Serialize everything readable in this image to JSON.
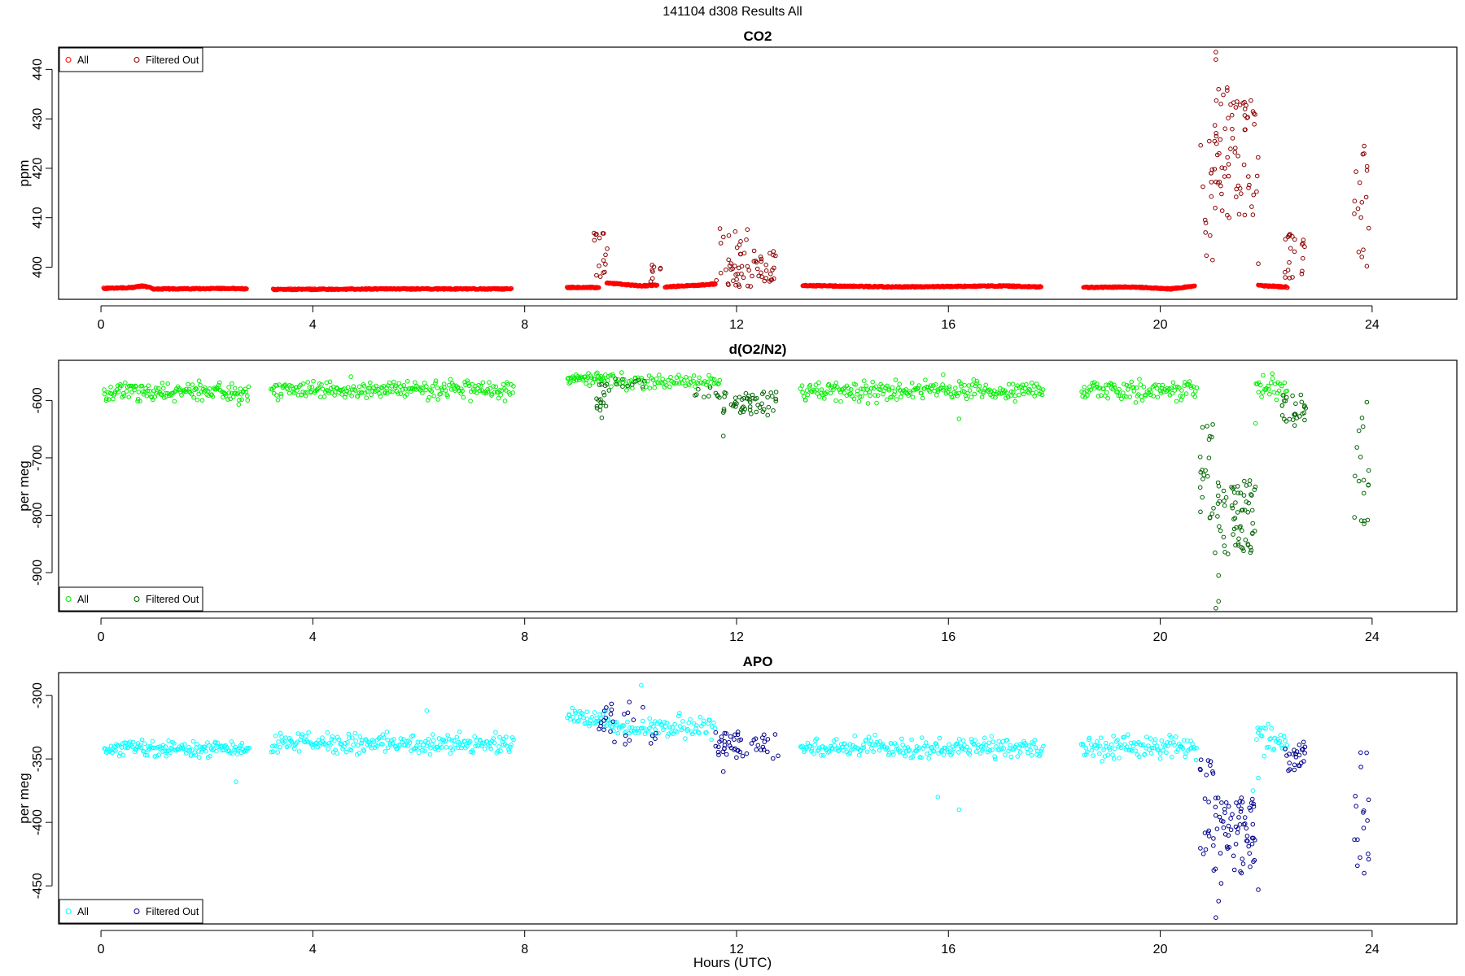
{
  "figure": {
    "title": "141104   d308   Results All",
    "xlabel": "Hours (UTC)"
  },
  "legend_labels": {
    "all": "All",
    "filtered": "Filtered Out"
  },
  "chart_data": [
    {
      "type": "scatter",
      "title": "CO2",
      "ylabel": "ppm",
      "xlim": [
        -0.8,
        25.6
      ],
      "ylim": [
        393.5,
        444.5
      ],
      "xticks": [
        0,
        4,
        8,
        12,
        16,
        20,
        24
      ],
      "yticks": [
        400,
        410,
        420,
        430,
        440
      ],
      "grid": false,
      "legend_position": "top-left",
      "colors": {
        "all": "#ff0000",
        "filtered": "#8b0000"
      },
      "series": [
        {
          "key": "all",
          "name": "All",
          "segments": [
            {
              "x": [
                0.05,
                2.75
              ],
              "levels": [
                [
                  0.05,
                  395.7
                ],
                [
                  0.6,
                  395.9
                ],
                [
                  0.8,
                  396.2
                ],
                [
                  1.0,
                  395.6
                ],
                [
                  2.5,
                  395.7
                ],
                [
                  2.75,
                  395.6
                ]
              ]
            },
            {
              "x": [
                3.25,
                7.75
              ],
              "levels": [
                [
                  3.25,
                  395.5
                ],
                [
                  5.5,
                  395.6
                ],
                [
                  7.75,
                  395.6
                ]
              ]
            },
            {
              "x": [
                8.8,
                9.4
              ],
              "levels": [
                [
                  8.8,
                  395.9
                ],
                [
                  9.4,
                  395.9
                ]
              ]
            },
            {
              "x": [
                9.55,
                10.5
              ],
              "levels": [
                [
                  9.55,
                  396.8
                ],
                [
                  10.2,
                  396.2
                ],
                [
                  10.5,
                  396.4
                ]
              ]
            },
            {
              "x": [
                10.65,
                11.6
              ],
              "levels": [
                [
                  10.65,
                  396.0
                ],
                [
                  11.2,
                  396.3
                ],
                [
                  11.6,
                  396.6
                ]
              ]
            },
            {
              "x": [
                13.25,
                17.75
              ],
              "levels": [
                [
                  13.25,
                  396.3
                ],
                [
                  15.0,
                  396.0
                ],
                [
                  16.0,
                  396.1
                ],
                [
                  17.0,
                  396.2
                ],
                [
                  17.75,
                  396.0
                ]
              ]
            },
            {
              "x": [
                18.55,
                20.65
              ],
              "levels": [
                [
                  18.55,
                  395.9
                ],
                [
                  19.5,
                  396.0
                ],
                [
                  20.2,
                  395.6
                ],
                [
                  20.65,
                  396.2
                ]
              ]
            },
            {
              "x": [
                21.85,
                22.4
              ],
              "levels": [
                [
                  21.85,
                  396.3
                ],
                [
                  22.4,
                  396.0
                ]
              ]
            }
          ]
        },
        {
          "key": "filtered",
          "name": "Filtered Out",
          "clusters": [
            {
              "x": [
                9.3,
                9.6
              ],
              "y": [
                397,
                408
              ],
              "n": 16
            },
            {
              "x": [
                10.35,
                10.6
              ],
              "y": [
                397,
                401
              ],
              "n": 8
            },
            {
              "x": [
                11.6,
                12.35
              ],
              "y": [
                396,
                408
              ],
              "n": 42
            },
            {
              "x": [
                12.35,
                12.75
              ],
              "y": [
                397,
                403.5
              ],
              "n": 24
            },
            {
              "x": [
                20.75,
                21.0
              ],
              "y": [
                398,
                426
              ],
              "n": 14
            },
            {
              "x": [
                21.0,
                21.85
              ],
              "y": [
                410,
                437
              ],
              "n": 70
            },
            {
              "x": [
                22.35,
                22.75
              ],
              "y": [
                397,
                407
              ],
              "n": 22
            },
            {
              "x": [
                23.65,
                23.95
              ],
              "y": [
                400,
                424.5
              ],
              "n": 16
            }
          ],
          "points": [
            [
              21.05,
              443.5
            ],
            [
              21.05,
              442
            ],
            [
              21.1,
              436
            ],
            [
              21.6,
              432
            ],
            [
              21.45,
              433.5
            ],
            [
              21.3,
              410
            ],
            [
              21.75,
              431.5
            ],
            [
              23.85,
              424.5
            ],
            [
              23.9,
              400.2
            ],
            [
              21.85,
              400.7
            ]
          ]
        }
      ]
    },
    {
      "type": "scatter",
      "title": "d(O2/N2)",
      "ylabel": "per meg",
      "xlim": [
        -0.8,
        25.6
      ],
      "ylim": [
        -968,
        -530
      ],
      "xticks": [
        0,
        4,
        8,
        12,
        16,
        20,
        24
      ],
      "yticks": [
        -600,
        -700,
        -800,
        -900
      ],
      "grid": false,
      "legend_position": "bottom-left",
      "colors": {
        "all": "#00ee00",
        "filtered": "#006400"
      },
      "series": [
        {
          "key": "all",
          "name": "All",
          "segments": [
            {
              "x": [
                0.05,
                2.8
              ],
              "mean": -585,
              "spread": 18,
              "n": 150
            },
            {
              "x": [
                3.2,
                7.8
              ],
              "mean": -580,
              "spread": 20,
              "n": 230
            },
            {
              "x": [
                8.8,
                9.5
              ],
              "mean": -562,
              "spread": 14,
              "n": 40
            },
            {
              "x": [
                9.5,
                11.7
              ],
              "mean": -568,
              "spread": 18,
              "n": 90
            },
            {
              "x": [
                13.2,
                17.8
              ],
              "mean": -583,
              "spread": 20,
              "n": 230
            },
            {
              "x": [
                18.5,
                20.7
              ],
              "mean": -583,
              "spread": 20,
              "n": 110
            },
            {
              "x": [
                21.8,
                22.4
              ],
              "mean": -580,
              "spread": 30,
              "n": 30
            }
          ],
          "points": [
            [
              2.6,
              -607
            ],
            [
              15.9,
              -555
            ],
            [
              16.2,
              -632
            ],
            [
              21.8,
              -640
            ]
          ]
        },
        {
          "key": "filtered",
          "name": "Filtered Out",
          "clusters": [
            {
              "x": [
                9.35,
                9.6
              ],
              "y": [
                -632,
                -570
              ],
              "n": 18
            },
            {
              "x": [
                9.7,
                10.3
              ],
              "y": [
                -580,
                -560
              ],
              "n": 10
            },
            {
              "x": [
                11.2,
                11.8
              ],
              "y": [
                -600,
                -575
              ],
              "n": 12
            },
            {
              "x": [
                11.7,
                12.75
              ],
              "y": [
                -630,
                -585
              ],
              "n": 50
            },
            {
              "x": [
                20.75,
                21.0
              ],
              "y": [
                -830,
                -640
              ],
              "n": 20
            },
            {
              "x": [
                21.0,
                21.8
              ],
              "y": [
                -870,
                -735
              ],
              "n": 70
            },
            {
              "x": [
                22.3,
                22.75
              ],
              "y": [
                -645,
                -590
              ],
              "n": 26
            },
            {
              "x": [
                23.65,
                23.95
              ],
              "y": [
                -822,
                -610
              ],
              "n": 16
            }
          ],
          "points": [
            [
              21.05,
              -962
            ],
            [
              21.1,
              -950
            ],
            [
              21.1,
              -905
            ],
            [
              11.75,
              -662
            ],
            [
              23.9,
              -603
            ],
            [
              23.85,
              -815
            ]
          ]
        }
      ]
    },
    {
      "type": "scatter",
      "title": "APO",
      "ylabel": "per meg",
      "xlim": [
        -0.8,
        25.6
      ],
      "ylim": [
        -480,
        -282
      ],
      "xticks": [
        0,
        4,
        8,
        12,
        16,
        20,
        24
      ],
      "yticks": [
        -300,
        -350,
        -400,
        -450
      ],
      "grid": false,
      "legend_position": "bottom-left",
      "colors": {
        "all": "#00ffff",
        "filtered": "#00008b"
      },
      "series": [
        {
          "key": "all",
          "name": "All",
          "segments": [
            {
              "x": [
                0.05,
                2.8
              ],
              "mean": -342,
              "spread": 8,
              "n": 150
            },
            {
              "x": [
                3.2,
                7.8
              ],
              "mean": -338,
              "spread": 10,
              "n": 230
            },
            {
              "x": [
                8.8,
                9.6
              ],
              "mean": -318,
              "spread": 8,
              "n": 40
            },
            {
              "x": [
                9.6,
                11.6
              ],
              "mean": -325,
              "spread": 10,
              "n": 90
            },
            {
              "x": [
                13.2,
                17.8
              ],
              "mean": -341,
              "spread": 10,
              "n": 230
            },
            {
              "x": [
                18.5,
                20.7
              ],
              "mean": -340,
              "spread": 12,
              "n": 110
            },
            {
              "x": [
                21.8,
                22.4
              ],
              "mean": -335,
              "spread": 20,
              "n": 30
            }
          ],
          "points": [
            [
              2.55,
              -368
            ],
            [
              10.2,
              -292
            ],
            [
              15.8,
              -380
            ],
            [
              16.2,
              -390
            ],
            [
              6.15,
              -312
            ],
            [
              21.85,
              -365
            ],
            [
              21.75,
              -375
            ]
          ]
        },
        {
          "key": "filtered",
          "name": "Filtered Out",
          "clusters": [
            {
              "x": [
                9.4,
                10.5
              ],
              "y": [
                -340,
                -305
              ],
              "n": 26
            },
            {
              "x": [
                11.6,
                12.8
              ],
              "y": [
                -350,
                -328
              ],
              "n": 50
            },
            {
              "x": [
                20.75,
                21.0
              ],
              "y": [
                -425,
                -350
              ],
              "n": 18
            },
            {
              "x": [
                21.0,
                21.8
              ],
              "y": [
                -440,
                -380
              ],
              "n": 70
            },
            {
              "x": [
                22.35,
                22.75
              ],
              "y": [
                -360,
                -335
              ],
              "n": 24
            },
            {
              "x": [
                23.65,
                23.95
              ],
              "y": [
                -435,
                -340
              ],
              "n": 16
            }
          ],
          "points": [
            [
              21.05,
              -475
            ],
            [
              21.1,
              -462
            ],
            [
              21.15,
              -448
            ],
            [
              11.75,
              -360
            ],
            [
              21.85,
              -453
            ],
            [
              23.85,
              -440
            ]
          ]
        }
      ]
    }
  ]
}
